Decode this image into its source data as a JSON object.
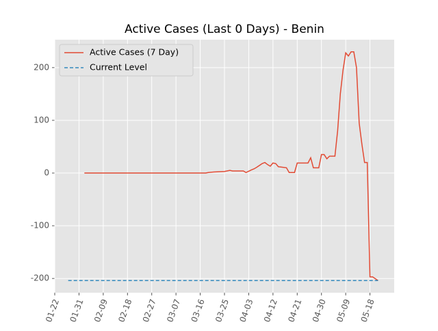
{
  "chart_data": {
    "type": "line",
    "title": "Active Cases (Last 0 Days) - Benin",
    "series": [
      {
        "name": "Active Cases (7 Day)",
        "color": "#E24A33",
        "style": "solid",
        "x": [
          "02-02",
          "03-18",
          "03-19",
          "03-21",
          "03-25",
          "03-27",
          "03-28",
          "04-01",
          "04-02",
          "04-04",
          "04-05",
          "04-06",
          "04-08",
          "04-09",
          "04-10",
          "04-11",
          "04-12",
          "04-13",
          "04-14",
          "04-17",
          "04-18",
          "04-20",
          "04-21",
          "04-25",
          "04-26",
          "04-27",
          "04-29",
          "04-30",
          "05-01",
          "05-02",
          "05-03",
          "05-05",
          "05-06",
          "05-07",
          "05-08",
          "05-09",
          "05-10",
          "05-11",
          "05-12",
          "05-13",
          "05-14",
          "05-15",
          "05-16",
          "05-17",
          "05-18",
          "05-19",
          "05-21"
        ],
        "values": [
          0,
          0,
          1,
          2,
          3,
          5,
          4,
          4,
          1,
          6,
          8,
          11,
          18,
          20,
          16,
          13,
          19,
          18,
          12,
          10,
          1,
          1,
          19,
          19,
          29,
          10,
          10,
          35,
          35,
          27,
          32,
          32,
          80,
          150,
          195,
          228,
          222,
          230,
          230,
          200,
          95,
          55,
          20,
          20,
          -197,
          -197,
          -204
        ]
      },
      {
        "name": "Current Level",
        "color": "#348ABD",
        "style": "dashed",
        "x": [
          "01-27",
          "05-21"
        ],
        "values": [
          -204,
          -204
        ]
      }
    ],
    "xlim": [
      "01-22",
      "05-27"
    ],
    "xticks": [
      "01-22",
      "01-31",
      "02-09",
      "02-18",
      "02-27",
      "03-07",
      "03-16",
      "03-25",
      "04-03",
      "04-12",
      "04-21",
      "04-30",
      "05-09",
      "05-18"
    ],
    "ylim": [
      -227,
      253
    ],
    "yticks": [
      -200,
      -100,
      0,
      100,
      200
    ],
    "grid": true,
    "legend": "upper-left"
  }
}
